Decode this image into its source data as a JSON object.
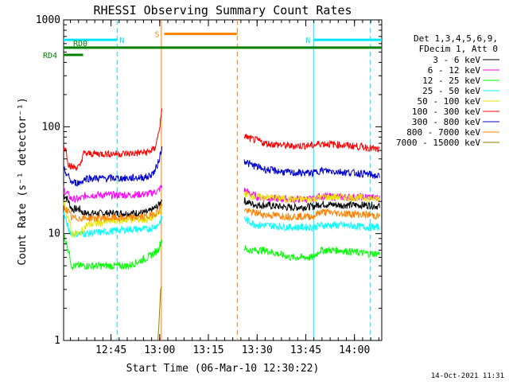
{
  "chart_data": {
    "type": "line",
    "title": "RHESSI Observing Summary Count Rates",
    "xlabel": "Start Time (06-Mar-10 12:30:22)",
    "ylabel": "Count Rate (s⁻¹ detector⁻¹)",
    "yscale": "log",
    "ylim": [
      1,
      1000
    ],
    "xlim_min": [
      0.0,
      98.0
    ],
    "x_unit": "minutes after 12:30:22",
    "x_ticks": [
      {
        "label": "12:45",
        "value": 14.6
      },
      {
        "label": "13:00",
        "value": 29.6
      },
      {
        "label": "13:15",
        "value": 44.6
      },
      {
        "label": "13:30",
        "value": 59.6
      },
      {
        "label": "13:45",
        "value": 74.6
      },
      {
        "label": "14:00",
        "value": 89.6
      }
    ],
    "y_ticks": [
      {
        "label": "1",
        "value": 1
      },
      {
        "label": "10",
        "value": 10
      },
      {
        "label": "100",
        "value": 100
      },
      {
        "label": "1000",
        "value": 1000
      }
    ],
    "legend_header": [
      "Det 1,3,4,5,6,9,",
      "FDecim 1, Att 0"
    ],
    "series": [
      {
        "name": "3 - 6 keV",
        "color": "#000000",
        "x": [
          0,
          0.8,
          1.5,
          2.5,
          5,
          6,
          7,
          14,
          20,
          26,
          29,
          30.4,
          55.5,
          56,
          58,
          60,
          62,
          70,
          77,
          79,
          85,
          94,
          97.4
        ],
        "y": [
          23,
          22,
          20,
          17,
          17,
          15.5,
          15.5,
          15.5,
          15.5,
          15.8,
          18,
          21,
          21,
          20,
          19,
          18.5,
          18.5,
          17.5,
          18,
          19,
          18.5,
          18.5,
          18
        ]
      },
      {
        "name": "6 - 12 keV",
        "color": "#ff00ff",
        "x": [
          0,
          1.5,
          2.5,
          5,
          7,
          14,
          20,
          26,
          29,
          30.4,
          55.5,
          57,
          60,
          62,
          70,
          77,
          79,
          85,
          94,
          97.4
        ],
        "y": [
          26,
          23,
          21,
          21,
          23,
          23,
          23,
          23.5,
          25,
          28,
          26,
          24,
          22,
          21.5,
          21,
          21,
          22.5,
          22,
          22,
          21.5
        ]
      },
      {
        "name": "12 - 25 keV",
        "color": "#00ff00",
        "x": [
          0,
          1.5,
          2.5,
          4,
          7,
          14,
          20,
          26,
          29,
          30.4,
          55.5,
          56.5,
          58,
          62,
          70,
          77,
          79,
          85,
          94,
          97.4
        ],
        "y": [
          10,
          7,
          5,
          5,
          5,
          5,
          5,
          6,
          7,
          9,
          7.5,
          7,
          7,
          7,
          6,
          6,
          7,
          7,
          6.5,
          6.5
        ]
      },
      {
        "name": "25 - 50 keV",
        "color": "#00ffff",
        "x": [
          0,
          1.5,
          2.5,
          5,
          7,
          14,
          20,
          26,
          29,
          30.4,
          55.5,
          57,
          60,
          62,
          70,
          77,
          79,
          85,
          94,
          97.4
        ],
        "y": [
          16,
          11,
          10,
          10,
          10,
          10.5,
          11,
          11,
          12,
          14,
          14,
          13,
          12,
          12,
          11.5,
          11.5,
          12,
          12,
          11.5,
          11.5
        ]
      },
      {
        "name": "50 - 100 keV",
        "color": "#e6e600",
        "x": [
          0,
          1.5,
          2.5,
          5,
          7,
          14,
          20,
          26,
          29,
          30.4,
          55.5,
          57,
          60,
          62,
          70,
          77,
          79,
          85,
          94,
          97.4
        ],
        "y": [
          20,
          14,
          10,
          10,
          12,
          13,
          13.5,
          13.5,
          15,
          18,
          24,
          23,
          22,
          22,
          21,
          21,
          22,
          22,
          21.5,
          21
        ]
      },
      {
        "name": "100 - 300 keV",
        "color": "#ff0000",
        "x": [
          0,
          0.8,
          1.5,
          2.5,
          5,
          6,
          7,
          14,
          20,
          26,
          28,
          29,
          29.8,
          30.4,
          56,
          57,
          60,
          62,
          70,
          77,
          79,
          85,
          94,
          97.4
        ],
        "y": [
          65,
          60,
          45,
          42,
          42,
          56,
          56,
          56,
          56,
          58,
          62,
          80,
          110,
          145,
          82,
          78,
          74,
          70,
          66,
          67,
          70,
          68,
          64,
          60
        ]
      },
      {
        "name": "300 - 800 keV",
        "color": "#0000cc",
        "x": [
          0,
          1.5,
          2.5,
          5,
          7,
          14,
          20,
          26,
          28,
          29,
          29.8,
          30.4,
          56,
          57,
          60,
          62,
          70,
          77,
          79,
          85,
          94,
          97.4
        ],
        "y": [
          40,
          34,
          30,
          30,
          33,
          33,
          33,
          34,
          38,
          45,
          55,
          65,
          48,
          45,
          42,
          40,
          37,
          37,
          39,
          38,
          36,
          34
        ]
      },
      {
        "name": "800 - 7000 keV",
        "color": "#ff8000",
        "x": [
          0,
          1.5,
          2.5,
          5,
          7,
          14,
          20,
          26,
          29,
          30.4,
          55.5,
          57,
          60,
          62,
          70,
          77,
          79,
          85,
          94,
          97.4
        ],
        "y": [
          18,
          16,
          14,
          14,
          14,
          14,
          14,
          14.5,
          16,
          19,
          17,
          16,
          15.5,
          15,
          14.5,
          14.5,
          16,
          15.5,
          15,
          14.5
        ]
      },
      {
        "name": "7000 - 15000 keV",
        "color": "#9a7a00",
        "x": [
          29.0,
          29.3,
          29.6,
          29.9,
          30.2
        ],
        "y": [
          1,
          1.3,
          2,
          3,
          3.2
        ]
      }
    ],
    "annotations": [
      {
        "label": "N",
        "color": "#00e5ff",
        "x_start": 0,
        "x_end": 16.5,
        "bar_y": 650
      },
      {
        "label": "N",
        "color": "#00e5ff",
        "x_start": 77.0,
        "x_end": 98.0,
        "bar_y": 650
      },
      {
        "label": "S",
        "color": "#ff8000",
        "x_start": 31.0,
        "x_end": 53.5,
        "bar_y": 740
      },
      {
        "label": "RD0",
        "color": "#008000",
        "x_start": 0,
        "x_end": 98.0,
        "bar_y": 550
      },
      {
        "label": "RD4",
        "color": "#008000",
        "x_start": 0,
        "x_end": 6.0,
        "bar_y": 470
      }
    ],
    "vertical_markers": [
      {
        "x": 16.5,
        "color": "#00e5ff",
        "style": "dashed"
      },
      {
        "x": 30.1,
        "color": "#ff8000",
        "style": "solid"
      },
      {
        "x": 53.5,
        "color": "#ff8000",
        "style": "dashed"
      },
      {
        "x": 77.0,
        "color": "#00e5ff",
        "style": "solid"
      },
      {
        "x": 94.5,
        "color": "#00e5ff",
        "style": "dashed"
      }
    ],
    "data_gap_min": [
      30.4,
      55.5
    ],
    "timestamp": "14-Oct-2021 11:31"
  }
}
